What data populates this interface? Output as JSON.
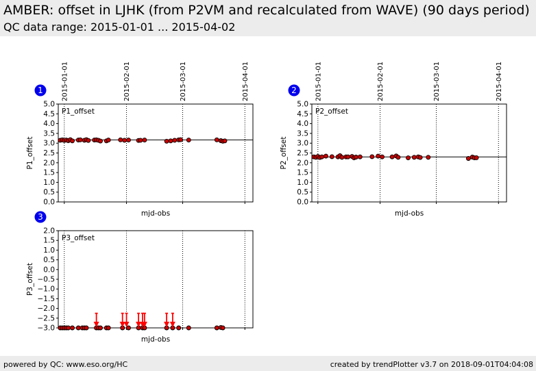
{
  "header": {
    "title": "AMBER: offset in LJHK (from P2VM and recalculated from WAVE) (90 days period)",
    "subtitle": "QC data range: 2015-01-01 ... 2015-04-02"
  },
  "footer": {
    "left": "powered by QC: www.eso.org/HC",
    "right": "created by trendPlotter v3.7 on 2018-09-01T04:04:08"
  },
  "colors": {
    "point_fill": "#cc0000",
    "point_edge": "#000000",
    "arrow": "#ff0000",
    "badge": "#0000ee"
  },
  "chart_data": [
    {
      "type": "scatter",
      "badge": "1",
      "panel_label": "P1_offset",
      "ylabel": "P1_offset",
      "xlabel": "mjd-obs",
      "date_ticks": [
        "2015-01-01",
        "2015-02-01",
        "2015-03-01",
        "2015-04-01"
      ],
      "xlim": [
        "2014-12-29",
        "2015-04-05"
      ],
      "ylim": [
        0,
        5
      ],
      "yticks": [
        "0.0",
        "0.5",
        "1.0",
        "1.5",
        "2.0",
        "2.5",
        "3.0",
        "3.5",
        "4.0",
        "4.5",
        "5.0"
      ],
      "reference_line": 3.17,
      "x": [
        "2014-12-30",
        "2014-12-31",
        "2015-01-01",
        "2015-01-02",
        "2015-01-03",
        "2015-01-04",
        "2015-01-05",
        "2015-01-08",
        "2015-01-09",
        "2015-01-11",
        "2015-01-12",
        "2015-01-13",
        "2015-01-16",
        "2015-01-17",
        "2015-01-18",
        "2015-01-19",
        "2015-01-22",
        "2015-01-23",
        "2015-01-29",
        "2015-01-31",
        "2015-02-02",
        "2015-02-07",
        "2015-02-08",
        "2015-02-10",
        "2015-02-21",
        "2015-02-23",
        "2015-02-25",
        "2015-02-27",
        "2015-02-28",
        "2015-03-04",
        "2015-03-18",
        "2015-03-20",
        "2015-03-21",
        "2015-03-22"
      ],
      "y": [
        3.15,
        3.17,
        3.14,
        3.16,
        3.13,
        3.18,
        3.12,
        3.16,
        3.17,
        3.15,
        3.18,
        3.14,
        3.16,
        3.17,
        3.15,
        3.11,
        3.12,
        3.16,
        3.17,
        3.15,
        3.16,
        3.14,
        3.15,
        3.16,
        3.1,
        3.12,
        3.15,
        3.17,
        3.18,
        3.16,
        3.17,
        3.13,
        3.1,
        3.12
      ]
    },
    {
      "type": "scatter",
      "badge": "2",
      "panel_label": "P2_offset",
      "ylabel": "P2_offset",
      "xlabel": "mjd-obs",
      "date_ticks": [
        "2015-01-01",
        "2015-02-01",
        "2015-03-01",
        "2015-04-01"
      ],
      "xlim": [
        "2014-12-29",
        "2015-04-05"
      ],
      "ylim": [
        0,
        5
      ],
      "yticks": [
        "0.0",
        "0.5",
        "1.0",
        "1.5",
        "2.0",
        "2.5",
        "3.0",
        "3.5",
        "4.0",
        "4.5",
        "5.0"
      ],
      "reference_line": 2.3,
      "x": [
        "2014-12-30",
        "2014-12-31",
        "2015-01-01",
        "2015-01-02",
        "2015-01-03",
        "2015-01-05",
        "2015-01-08",
        "2015-01-11",
        "2015-01-12",
        "2015-01-13",
        "2015-01-15",
        "2015-01-16",
        "2015-01-18",
        "2015-01-19",
        "2015-01-20",
        "2015-01-22",
        "2015-01-28",
        "2015-01-31",
        "2015-02-02",
        "2015-02-07",
        "2015-02-09",
        "2015-02-10",
        "2015-02-15",
        "2015-02-18",
        "2015-02-20",
        "2015-02-21",
        "2015-02-25",
        "2015-03-17",
        "2015-03-19",
        "2015-03-20",
        "2015-03-21"
      ],
      "y": [
        2.3,
        2.28,
        2.32,
        2.27,
        2.3,
        2.34,
        2.31,
        2.3,
        2.36,
        2.28,
        2.3,
        2.3,
        2.32,
        2.25,
        2.29,
        2.3,
        2.31,
        2.34,
        2.3,
        2.3,
        2.35,
        2.28,
        2.25,
        2.28,
        2.3,
        2.27,
        2.28,
        2.22,
        2.29,
        2.25,
        2.26
      ]
    },
    {
      "type": "scatter",
      "badge": "3",
      "panel_label": "P3_offset",
      "ylabel": "P3_offset",
      "xlabel": "mjd-obs",
      "date_ticks": [
        "2015-01-01",
        "2015-02-01",
        "2015-03-01",
        "2015-04-01"
      ],
      "xlim": [
        "2014-12-29",
        "2015-04-05"
      ],
      "ylim": [
        -3,
        2
      ],
      "yticks": [
        "−3.0",
        "−2.5",
        "−2.0",
        "−1.5",
        "−1.0",
        "−0.5",
        "0.0",
        "0.5",
        "1.0",
        "1.5",
        "2.0"
      ],
      "x": [
        "2014-12-30",
        "2014-12-31",
        "2015-01-01",
        "2015-01-02",
        "2015-01-03",
        "2015-01-05",
        "2015-01-08",
        "2015-01-10",
        "2015-01-11",
        "2015-01-12",
        "2015-01-17",
        "2015-01-18",
        "2015-01-19",
        "2015-01-22",
        "2015-01-23",
        "2015-01-30",
        "2015-02-02",
        "2015-02-07",
        "2015-02-09",
        "2015-02-10",
        "2015-02-21",
        "2015-02-24",
        "2015-02-27",
        "2015-03-04",
        "2015-03-18",
        "2015-03-20",
        "2015-03-21"
      ],
      "y": [
        -3,
        -3,
        -3,
        -3,
        -3,
        -3,
        -3,
        -3,
        -3,
        -3,
        -3,
        -3,
        -3,
        -3,
        -3,
        -3,
        -3,
        -3,
        -3,
        -3,
        -3,
        -3,
        -3,
        -3,
        -3,
        -2.98,
        -3
      ],
      "lower_limit_arrows_x": [
        "2015-01-17",
        "2015-01-30",
        "2015-02-01",
        "2015-02-07",
        "2015-02-09",
        "2015-02-10",
        "2015-02-21",
        "2015-02-24"
      ]
    }
  ]
}
